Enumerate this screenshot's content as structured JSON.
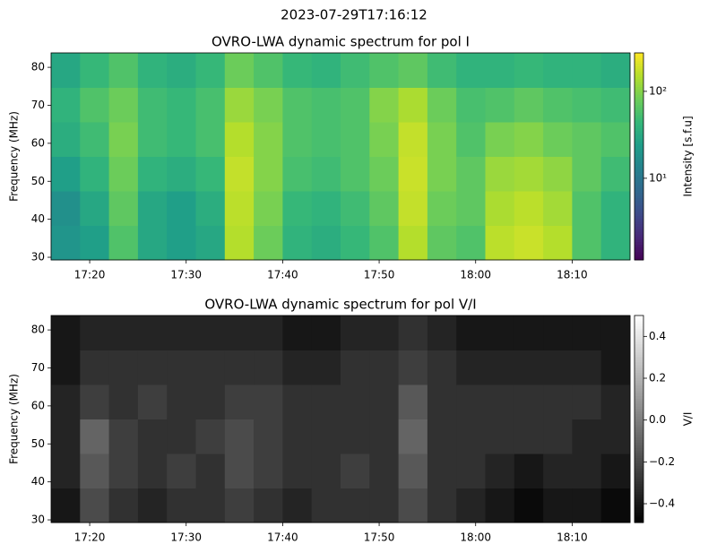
{
  "title": "2023-07-29T17:16:12",
  "chart_data": [
    {
      "type": "heatmap",
      "title": "OVRO-LWA dynamic spectrum for pol I",
      "ylabel": "Frequency (MHz)",
      "xlim": [
        "17:16",
        "18:16"
      ],
      "xticks": [
        "17:20",
        "17:30",
        "17:40",
        "17:50",
        "18:00",
        "18:10"
      ],
      "ylim": [
        29.3,
        83.8
      ],
      "yticks": [
        30,
        40,
        50,
        60,
        70,
        80
      ],
      "values": [
        [
          20,
          25,
          60,
          30,
          25,
          30,
          150,
          80,
          40,
          35,
          45,
          60,
          150,
          70,
          60,
          160,
          180,
          150,
          60,
          40
        ],
        [
          18,
          30,
          70,
          30,
          25,
          35,
          160,
          90,
          45,
          40,
          50,
          70,
          170,
          80,
          70,
          140,
          160,
          130,
          60,
          40
        ],
        [
          25,
          40,
          80,
          40,
          35,
          45,
          170,
          100,
          55,
          50,
          60,
          80,
          180,
          90,
          70,
          120,
          130,
          110,
          70,
          50
        ],
        [
          35,
          50,
          90,
          50,
          45,
          55,
          150,
          100,
          60,
          55,
          60,
          90,
          170,
          90,
          60,
          90,
          100,
          80,
          70,
          60
        ],
        [
          40,
          60,
          80,
          50,
          45,
          55,
          120,
          90,
          60,
          55,
          60,
          100,
          140,
          80,
          55,
          60,
          70,
          60,
          55,
          50
        ],
        [
          30,
          45,
          60,
          40,
          35,
          45,
          80,
          60,
          45,
          40,
          50,
          60,
          70,
          50,
          40,
          40,
          45,
          40,
          40,
          35
        ]
      ],
      "colorbar": {
        "label": "Intensity [s.f.u]",
        "scale": "log",
        "colormap": "viridis",
        "lim": [
          1.15,
          277
        ],
        "ticks": [
          {
            "value": 10,
            "label": "10¹"
          },
          {
            "value": 100,
            "label": "10²"
          }
        ]
      }
    },
    {
      "type": "heatmap",
      "title": "OVRO-LWA dynamic spectrum for pol V/I",
      "ylabel": "Frequency (MHz)",
      "xlim": [
        "17:16",
        "18:16"
      ],
      "xticks": [
        "17:20",
        "17:30",
        "17:40",
        "17:50",
        "18:00",
        "18:10"
      ],
      "ylim": [
        29.3,
        83.8
      ],
      "yticks": [
        30,
        40,
        50,
        60,
        70,
        80
      ],
      "values": [
        [
          -0.4,
          -0.2,
          -0.3,
          -0.35,
          -0.3,
          -0.3,
          -0.25,
          -0.3,
          -0.35,
          -0.3,
          -0.3,
          -0.3,
          -0.2,
          -0.3,
          -0.35,
          -0.4,
          -0.45,
          -0.4,
          -0.4,
          -0.45
        ],
        [
          -0.35,
          -0.15,
          -0.25,
          -0.3,
          -0.25,
          -0.3,
          -0.2,
          -0.25,
          -0.3,
          -0.3,
          -0.25,
          -0.3,
          -0.15,
          -0.3,
          -0.3,
          -0.35,
          -0.4,
          -0.35,
          -0.35,
          -0.4
        ],
        [
          -0.35,
          -0.1,
          -0.25,
          -0.3,
          -0.3,
          -0.25,
          -0.2,
          -0.25,
          -0.3,
          -0.3,
          -0.3,
          -0.3,
          -0.1,
          -0.3,
          -0.3,
          -0.3,
          -0.3,
          -0.3,
          -0.35,
          -0.35
        ],
        [
          -0.35,
          -0.25,
          -0.3,
          -0.25,
          -0.3,
          -0.3,
          -0.25,
          -0.25,
          -0.3,
          -0.3,
          -0.3,
          -0.3,
          -0.15,
          -0.3,
          -0.3,
          -0.3,
          -0.3,
          -0.3,
          -0.3,
          -0.35
        ],
        [
          -0.4,
          -0.3,
          -0.3,
          -0.3,
          -0.3,
          -0.3,
          -0.3,
          -0.3,
          -0.35,
          -0.35,
          -0.3,
          -0.3,
          -0.25,
          -0.3,
          -0.35,
          -0.35,
          -0.35,
          -0.35,
          -0.35,
          -0.4
        ],
        [
          -0.4,
          -0.35,
          -0.35,
          -0.35,
          -0.35,
          -0.35,
          -0.35,
          -0.35,
          -0.4,
          -0.4,
          -0.35,
          -0.35,
          -0.3,
          -0.35,
          -0.4,
          -0.4,
          -0.4,
          -0.4,
          -0.4,
          -0.4
        ]
      ],
      "colorbar": {
        "label": "V/I",
        "scale": "linear",
        "colormap": "gray",
        "lim": [
          -0.49,
          0.5
        ],
        "ticks": [
          {
            "value": -0.4,
            "label": "−0.4"
          },
          {
            "value": -0.2,
            "label": "−0.2"
          },
          {
            "value": 0,
            "label": "0.0"
          },
          {
            "value": 0.2,
            "label": "0.2"
          },
          {
            "value": 0.4,
            "label": "0.4"
          }
        ]
      }
    }
  ]
}
